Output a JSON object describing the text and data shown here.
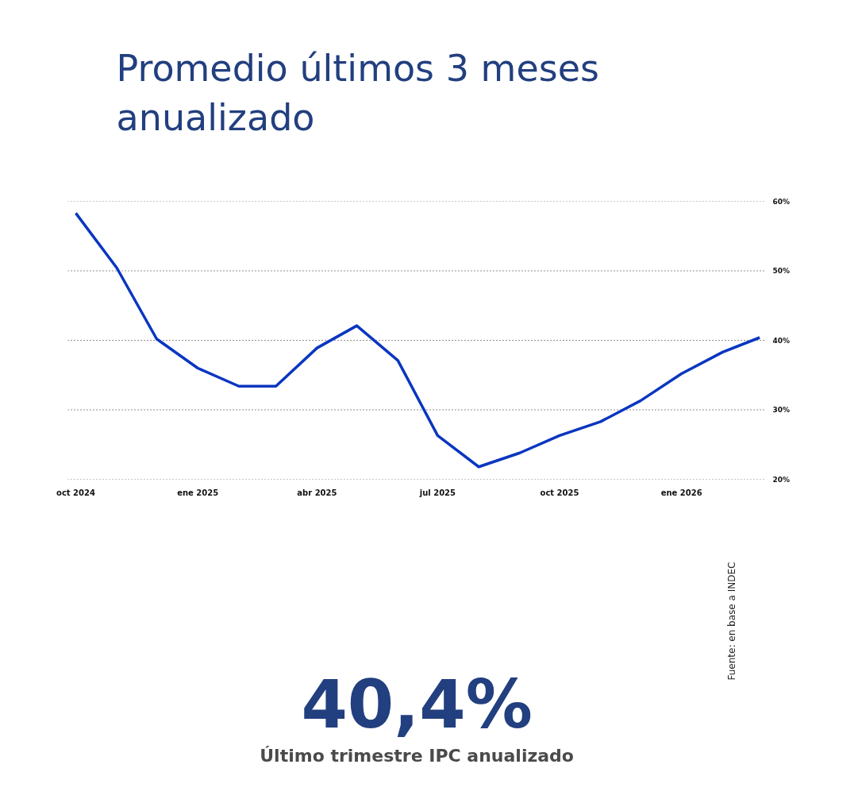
{
  "chart_data": {
    "type": "line",
    "title": "Promedio últimos 3 meses anualizado",
    "x": [
      "2024-10",
      "2024-11",
      "2024-12",
      "2025-01",
      "2025-02",
      "2025-03",
      "2025-04",
      "2025-05",
      "2025-06",
      "2025-07",
      "2025-08",
      "2025-09",
      "2025-10",
      "2025-11",
      "2025-12",
      "2026-01",
      "2026-02",
      "2026-03"
    ],
    "series": [
      {
        "color": "#0a36c0",
        "values": [
          58.3,
          50.4,
          40.2,
          36.0,
          33.4,
          33.4,
          38.9,
          42.1,
          37.1,
          26.3,
          21.8,
          23.8,
          26.3,
          28.3,
          31.3,
          35.2,
          38.3,
          40.4
        ]
      }
    ],
    "xlim": [
      "2024-09-25",
      "2026-03-06"
    ],
    "xticks": [
      {
        "value": "2024-10",
        "label": "oct 2024"
      },
      {
        "value": "2025-01",
        "label": "ene 2025"
      },
      {
        "value": "2025-04",
        "label": "abr 2025"
      },
      {
        "value": "2025-07",
        "label": "jul 2025"
      },
      {
        "value": "2025-10",
        "label": "oct 2025"
      },
      {
        "value": "2026-01",
        "label": "ene 2026"
      }
    ],
    "ylim": [
      20,
      60
    ],
    "yticks": [
      {
        "value": 20,
        "label": "20%"
      },
      {
        "value": 30,
        "label": "30%"
      },
      {
        "value": 40,
        "label": "40%"
      },
      {
        "value": 50,
        "label": "50%"
      },
      {
        "value": 60,
        "label": "60%"
      }
    ],
    "grid": "y",
    "marker": "none",
    "line_style": "solid",
    "annotations": [
      "40,4%",
      "Último trimestre IPC anualizado",
      "Fuente: en base a INDEC"
    ]
  }
}
